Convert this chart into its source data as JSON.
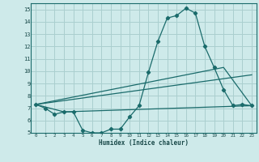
{
  "xlabel": "Humidex (Indice chaleur)",
  "ylabel": "",
  "bg_color": "#ceeaea",
  "grid_color": "#aacfcf",
  "line_color": "#1a6b6b",
  "xlim": [
    -0.5,
    23.5
  ],
  "ylim": [
    5,
    15.5
  ],
  "xticks": [
    0,
    1,
    2,
    3,
    4,
    5,
    6,
    7,
    8,
    9,
    10,
    11,
    12,
    13,
    14,
    15,
    16,
    17,
    18,
    19,
    20,
    21,
    22,
    23
  ],
  "yticks": [
    5,
    6,
    7,
    8,
    9,
    10,
    11,
    12,
    13,
    14,
    15
  ],
  "lines": [
    {
      "x": [
        0,
        1,
        2,
        3,
        4,
        5,
        6,
        7,
        8,
        9,
        10,
        11,
        12,
        13,
        14,
        15,
        16,
        17,
        18,
        19,
        20,
        21,
        22,
        23
      ],
      "y": [
        7.3,
        7.0,
        6.5,
        6.7,
        6.7,
        5.2,
        5.0,
        5.0,
        5.3,
        5.3,
        6.3,
        7.2,
        9.9,
        12.4,
        14.3,
        14.5,
        15.1,
        14.7,
        12.0,
        10.3,
        8.5,
        7.2,
        7.3,
        7.2
      ],
      "marker": true
    },
    {
      "x": [
        0,
        3,
        23
      ],
      "y": [
        7.3,
        6.7,
        7.2
      ],
      "marker": false
    },
    {
      "x": [
        0,
        23
      ],
      "y": [
        7.3,
        9.7
      ],
      "marker": false
    },
    {
      "x": [
        0,
        20,
        23
      ],
      "y": [
        7.3,
        10.3,
        7.2
      ],
      "marker": false
    }
  ]
}
